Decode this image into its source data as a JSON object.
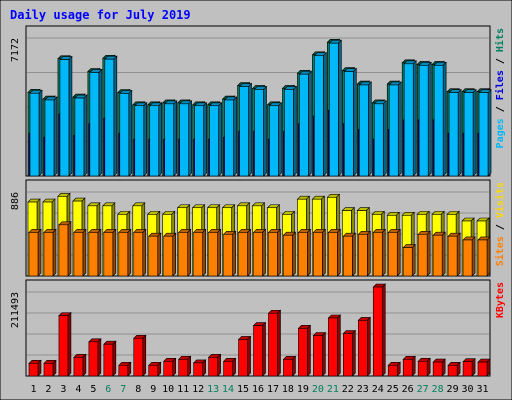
{
  "chart_data": {
    "type": "bar",
    "title": "Daily usage for July 2019",
    "categories": [
      "1",
      "2",
      "3",
      "4",
      "5",
      "6",
      "7",
      "8",
      "9",
      "10",
      "11",
      "12",
      "13",
      "14",
      "15",
      "16",
      "17",
      "18",
      "19",
      "20",
      "21",
      "22",
      "23",
      "24",
      "25",
      "26",
      "27",
      "28",
      "29",
      "30",
      "31"
    ],
    "weekend_days": [
      "6",
      "7",
      "13",
      "14",
      "20",
      "21",
      "27",
      "28"
    ],
    "panels": [
      {
        "id": "pages-files-hits",
        "ymax": 7172,
        "tick_label": "7172",
        "grid": true,
        "legend_labels": [
          {
            "text": "Pages",
            "color": "#00b8f8"
          },
          {
            "text": " / ",
            "color": "#000000"
          },
          {
            "text": "Files",
            "color": "#0000e0"
          },
          {
            "text": " / ",
            "color": "#000000"
          },
          {
            "text": "Hits",
            "color": "#008060"
          }
        ],
        "series": [
          {
            "name": "Hits",
            "color": "#008060",
            "values": [
              4350,
              4000,
              6100,
              4100,
              5430,
              6120,
              4340,
              3700,
              3700,
              3800,
              3800,
              3700,
              3700,
              4000,
              4700,
              4550,
              3700,
              4550,
              5340,
              6300,
              6950,
              5480,
              4780,
              3800,
              4780,
              5880,
              5800,
              5800,
              4380,
              4380,
              4380
            ]
          },
          {
            "name": "Files",
            "color": "#0000e0",
            "values": [
              2200,
              2000,
              3200,
              2100,
              2700,
              3000,
              2200,
              1900,
              1900,
              1900,
              1900,
              1900,
              1900,
              2000,
              2300,
              2300,
              1900,
              2300,
              2700,
              3100,
              3400,
              2700,
              2400,
              1900,
              2400,
              2900,
              2900,
              2900,
              2200,
              2200,
              2200
            ]
          },
          {
            "name": "Pages",
            "color": "#00b8f8",
            "values": [
              4300,
              3950,
              6050,
              4050,
              5380,
              6070,
              4290,
              3650,
              3650,
              3750,
              3750,
              3650,
              3650,
              3950,
              4650,
              4500,
              3650,
              4500,
              5290,
              6250,
              6900,
              5430,
              4730,
              3750,
              4730,
              5830,
              5750,
              5750,
              4330,
              4330,
              4330
            ]
          }
        ]
      },
      {
        "id": "sites-visits",
        "ymax": 886,
        "tick_label": "886",
        "grid": true,
        "legend_labels": [
          {
            "text": "Sites",
            "color": "#ff8000"
          },
          {
            "text": " / ",
            "color": "#000000"
          },
          {
            "text": "Visits",
            "color": "#ffd800"
          }
        ],
        "series": [
          {
            "name": "Visits",
            "color": "#ffff00",
            "values": [
              780,
              780,
              840,
              790,
              740,
              740,
              650,
              740,
              650,
              650,
              720,
              720,
              720,
              720,
              740,
              740,
              720,
              650,
              810,
              810,
              830,
              690,
              690,
              650,
              640,
              640,
              650,
              650,
              650,
              580,
              580
            ]
          },
          {
            "name": "Sites",
            "color": "#ff8000",
            "values": [
              460,
              460,
              540,
              460,
              460,
              460,
              460,
              460,
              420,
              420,
              460,
              460,
              460,
              440,
              460,
              460,
              460,
              430,
              460,
              460,
              460,
              420,
              440,
              460,
              460,
              300,
              440,
              430,
              420,
              380,
              380
            ]
          }
        ]
      },
      {
        "id": "kbytes",
        "ymax": 211493,
        "tick_label": "211493",
        "grid": true,
        "legend_labels": [
          {
            "text": "KBytes",
            "color": "#ff0000"
          }
        ],
        "series": [
          {
            "name": "KBytes",
            "color": "#ff0000",
            "values": [
              32000,
              32000,
              152000,
              47000,
              86000,
              80000,
              27000,
              95000,
              27000,
              37000,
              42000,
              33000,
              47000,
              37000,
              92000,
              127000,
              158000,
              42000,
              120000,
              102000,
              146000,
              107000,
              140000,
              224000,
              27000,
              42000,
              37000,
              35000,
              27000,
              36000,
              35000
            ]
          }
        ]
      }
    ]
  }
}
